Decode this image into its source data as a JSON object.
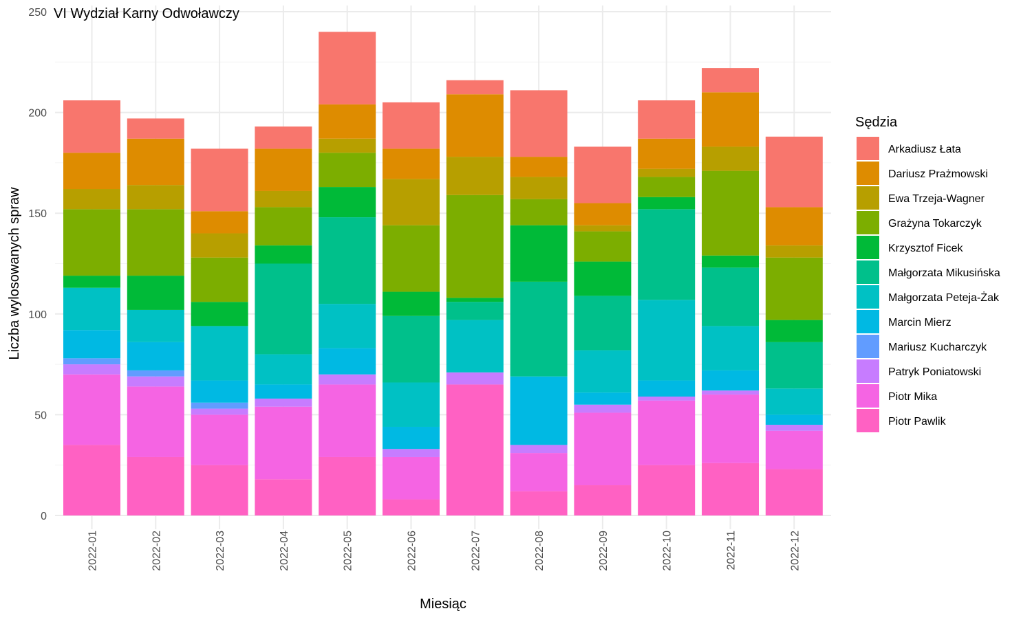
{
  "chart_data": {
    "type": "bar",
    "stacked": true,
    "title": "VI Wydział Karny Odwoławczy",
    "xlabel": "Miesiąc",
    "ylabel": "Liczba wylosowanych spraw",
    "ylim": [
      0,
      250
    ],
    "yticks": [
      "0",
      "50",
      "100",
      "150",
      "200",
      "250"
    ],
    "grid": true,
    "legend": {
      "title": "Sędzia",
      "position": "right"
    },
    "categories": [
      "2022-01",
      "2022-02",
      "2022-03",
      "2022-04",
      "2022-05",
      "2022-06",
      "2022-07",
      "2022-08",
      "2022-09",
      "2022-10",
      "2022-11",
      "2022-12"
    ],
    "series": [
      {
        "name": "Piotr Pawlik",
        "color": "#FF61C3",
        "values": [
          35,
          29,
          25,
          18,
          29,
          8,
          65,
          12,
          15,
          25,
          26,
          23
        ]
      },
      {
        "name": "Piotr Mika",
        "color": "#F564E3",
        "values": [
          35,
          35,
          25,
          36,
          36,
          21,
          0,
          19,
          36,
          32,
          34,
          19
        ]
      },
      {
        "name": "Patryk Poniatowski",
        "color": "#C77CFF",
        "values": [
          5,
          5,
          3,
          4,
          5,
          4,
          6,
          4,
          4,
          2,
          2,
          3
        ]
      },
      {
        "name": "Mariusz Kucharczyk",
        "color": "#619CFF",
        "values": [
          3,
          3,
          3,
          0,
          0,
          0,
          0,
          0,
          0,
          0,
          0,
          0
        ]
      },
      {
        "name": "Marcin Mierz",
        "color": "#00B9E3",
        "values": [
          14,
          14,
          11,
          7,
          13,
          11,
          0,
          34,
          6,
          8,
          10,
          5
        ]
      },
      {
        "name": "Małgorzata Peteja-Żak",
        "color": "#00C1C4",
        "values": [
          21,
          16,
          27,
          15,
          22,
          22,
          26,
          0,
          21,
          40,
          22,
          13
        ]
      },
      {
        "name": "Małgorzata Mikusińska",
        "color": "#00C08B",
        "values": [
          0,
          0,
          0,
          45,
          43,
          33,
          9,
          47,
          27,
          45,
          29,
          23
        ]
      },
      {
        "name": "Krzysztof Ficek",
        "color": "#00BA38",
        "values": [
          6,
          17,
          12,
          9,
          15,
          12,
          2,
          28,
          17,
          6,
          6,
          11
        ]
      },
      {
        "name": "Grażyna Tokarczyk",
        "color": "#7CAE00",
        "values": [
          33,
          33,
          22,
          19,
          17,
          33,
          51,
          13,
          15,
          10,
          42,
          31
        ]
      },
      {
        "name": "Ewa Trzeja-Wagner",
        "color": "#B79F00",
        "values": [
          10,
          12,
          12,
          8,
          7,
          23,
          19,
          11,
          3,
          4,
          12,
          6
        ]
      },
      {
        "name": "Dariusz Prażmowski",
        "color": "#DE8C00",
        "values": [
          18,
          23,
          11,
          21,
          17,
          15,
          31,
          10,
          11,
          15,
          27,
          19
        ]
      },
      {
        "name": "Arkadiusz Łata",
        "color": "#F8766D",
        "values": [
          26,
          10,
          31,
          11,
          36,
          23,
          7,
          33,
          28,
          19,
          12,
          35
        ]
      }
    ]
  }
}
